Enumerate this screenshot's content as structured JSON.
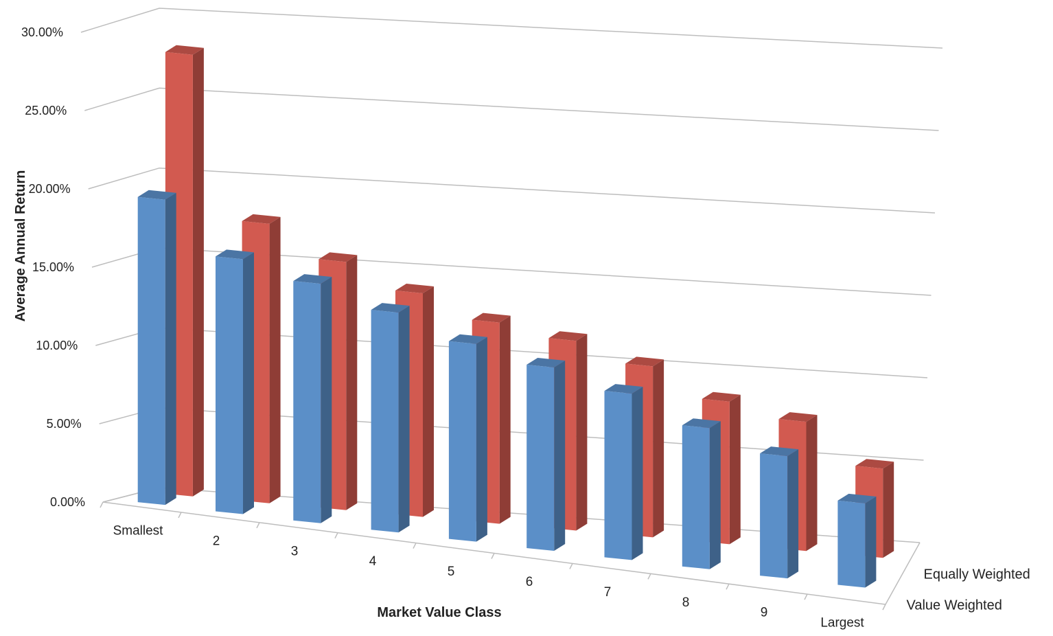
{
  "chart_data": {
    "type": "bar",
    "title": "",
    "xlabel": "Market Value Class",
    "ylabel": "Average Annual Return",
    "categories": [
      "Smallest",
      "2",
      "3",
      "4",
      "5",
      "6",
      "7",
      "8",
      "9",
      "Largest"
    ],
    "series": [
      {
        "name": "Value Weighted",
        "values": [
          19.4,
          16.4,
          15.6,
          14.5,
          13.2,
          12.4,
          11.4,
          9.8,
          8.6,
          6.0
        ],
        "color": "#5b8fc8"
      },
      {
        "name": "Equally Weighted",
        "values": [
          27.8,
          17.8,
          16.0,
          14.6,
          13.3,
          12.7,
          11.6,
          9.8,
          9.0,
          6.3
        ],
        "color": "#d25a50"
      }
    ],
    "y_ticks": [
      "0.00%",
      "5.00%",
      "10.00%",
      "15.00%",
      "20.00%",
      "25.00%",
      "30.00%"
    ],
    "ylim": [
      0,
      30
    ],
    "grid": true,
    "projection": "3d-perspective",
    "legend": "none"
  }
}
